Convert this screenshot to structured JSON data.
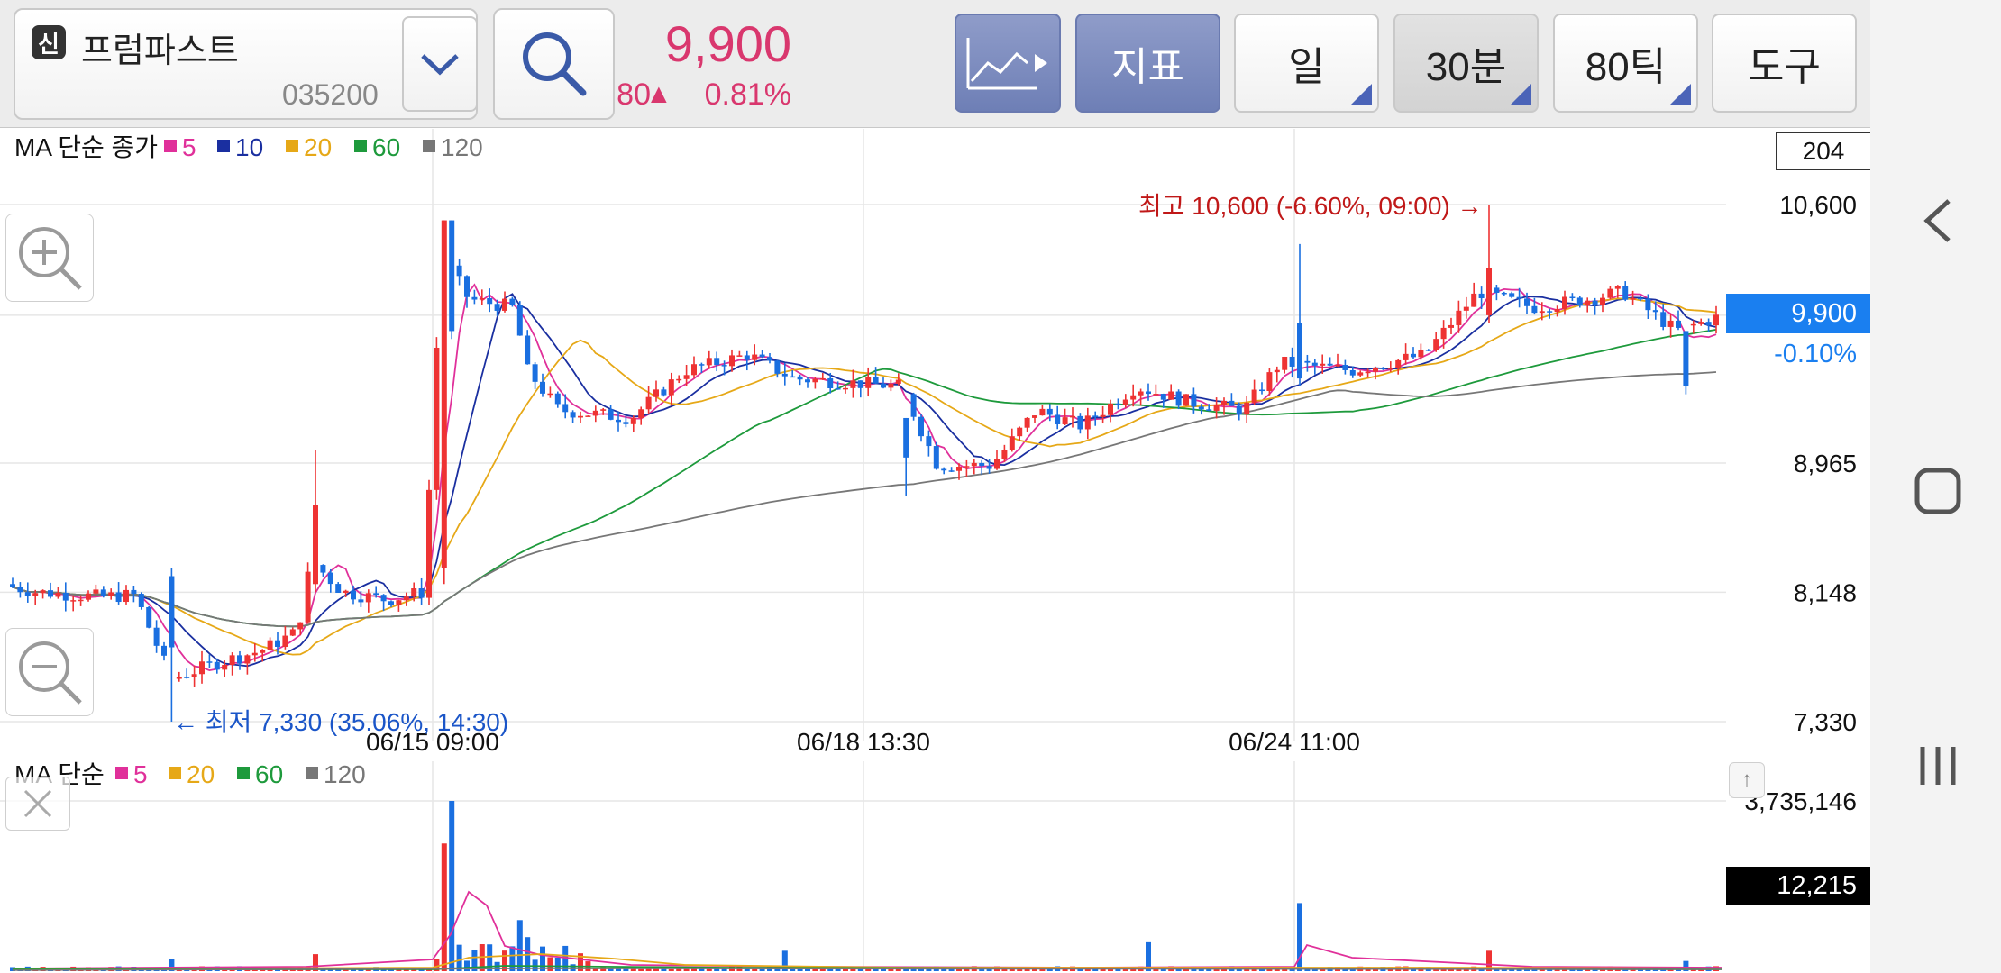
{
  "header": {
    "badge": "신",
    "stock_name": "프럼파스트",
    "stock_code": "035200",
    "price": "9,900",
    "change_arrow": "▲",
    "change": "80",
    "change_pct": "0.81%",
    "buttons": {
      "indicator": "지표",
      "day": "일",
      "min30": "30분",
      "tick80": "80틱",
      "tools": "도구"
    }
  },
  "main_chart": {
    "legend_title": "MA 단순 종가",
    "legend": [
      {
        "label": "5",
        "color": "#e0309a"
      },
      {
        "label": "10",
        "color": "#1a2fa0"
      },
      {
        "label": "20",
        "color": "#e6a817"
      },
      {
        "label": "60",
        "color": "#1e9a3c"
      },
      {
        "label": "120",
        "color": "#777777"
      }
    ],
    "scale_box": "204",
    "y_ticks": [
      "10,600",
      "8,965",
      "8,148",
      "7,330"
    ],
    "current_price_tag": "9,900",
    "current_price_diff": "-0.10%",
    "x_ticks": [
      "06/15 09:00",
      "06/18 13:30",
      "06/24 11:00"
    ],
    "high_annotation": "최고 10,600 (-6.60%, 09:00) →",
    "low_annotation": "← 최저 7,330 (35.06%, 14:30)"
  },
  "volume_chart": {
    "legend_title": "MA 단순",
    "legend": [
      {
        "label": "5",
        "color": "#e0309a"
      },
      {
        "label": "20",
        "color": "#e6a817"
      },
      {
        "label": "60",
        "color": "#1e9a3c"
      },
      {
        "label": "120",
        "color": "#777777"
      }
    ],
    "max_tick": "3,735,146",
    "volume_tag": "12,215",
    "scroll_up": "↑"
  },
  "colors": {
    "up": "#ee3333",
    "down": "#1a6fe0",
    "accent_price": "#d9376e",
    "current_tag": "#1a7ff0",
    "high_label": "#c01818",
    "low_label": "#1a55c8"
  },
  "chart_data": {
    "type": "candlestick",
    "y_axis_ticks": [
      10600,
      9900,
      8965,
      8148,
      7330
    ],
    "ylim": [
      7330,
      10600
    ],
    "x_axis_ticks": [
      "06/15 09:00",
      "06/18 13:30",
      "06/24 11:00"
    ],
    "series": [
      {
        "name": "MA 5"
      },
      {
        "name": "MA 10"
      },
      {
        "name": "MA 20"
      },
      {
        "name": "MA 60"
      },
      {
        "name": "MA 120"
      }
    ],
    "high": 10600,
    "low": 7330,
    "last_close": 9900,
    "volume_max": 3735146,
    "last_volume": 12215
  }
}
